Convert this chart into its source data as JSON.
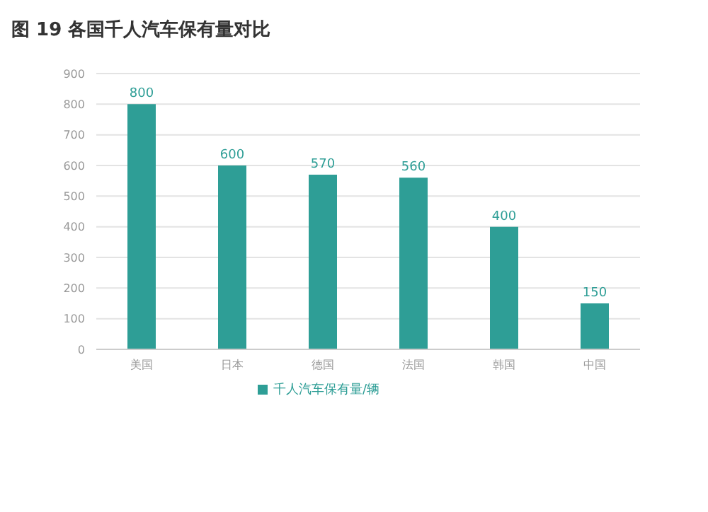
{
  "chart_data": {
    "type": "bar",
    "title": "图 19  各国千人汽车保有量对比",
    "categories": [
      "美国",
      "日本",
      "德国",
      "法国",
      "韩国",
      "中国"
    ],
    "series": [
      {
        "name": "千人汽车保有量/辆",
        "color": "#2e9e96",
        "values": [
          800,
          600,
          570,
          560,
          400,
          150
        ]
      }
    ],
    "ylim": [
      0,
      900
    ],
    "yticks": [
      0,
      100,
      200,
      300,
      400,
      500,
      600,
      700,
      800,
      900
    ],
    "grid": "y",
    "legend": "bottom",
    "data_labels": true
  }
}
